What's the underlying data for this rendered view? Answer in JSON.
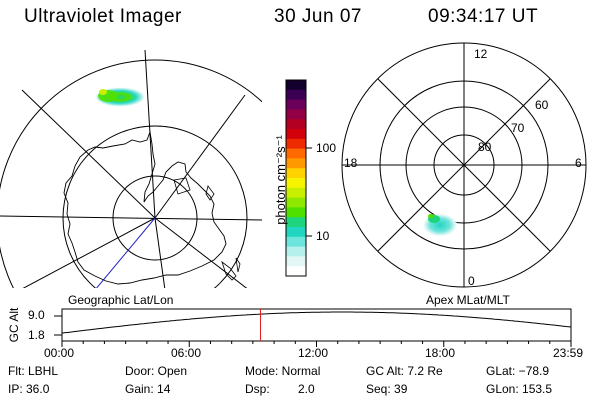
{
  "header": {
    "title": "Ultraviolet Imager",
    "date": "30 Jun 07",
    "time": "09:34:17 UT"
  },
  "geo_panel": {
    "caption": "Geographic Lat/Lon"
  },
  "colorbar": {
    "unit_label": "photon cm⁻²s⁻¹",
    "ticks": [
      "100",
      "10"
    ],
    "colors": [
      "#14002d",
      "#3b0054",
      "#6a005a",
      "#930045",
      "#b30022",
      "#d1000a",
      "#ee2a00",
      "#ff6a00",
      "#ff9900",
      "#ffd200",
      "#f6f400",
      "#c9ef00",
      "#8fe800",
      "#4fe000",
      "#1ed47d",
      "#21d6c0",
      "#6de4dc",
      "#b5f0ec",
      "#e3f8f6",
      "#ffffff"
    ]
  },
  "apex_panel": {
    "caption": "Apex MLat/MLT",
    "mlt_labels": [
      "12",
      "18",
      "6",
      "0"
    ],
    "mlat_labels": [
      "60",
      "70",
      "80"
    ]
  },
  "altitude_plot": {
    "ylabel": "GC Alt",
    "yticks": [
      "9.0",
      "1.8"
    ],
    "xticks": [
      "00:00",
      "06:00",
      "12:00",
      "18:00",
      "23:59"
    ],
    "current_time_fraction": 0.39
  },
  "info": {
    "filter": "Flt: LBHL",
    "ip": "IP: 36.0",
    "door": "Door: Open",
    "gain": "Gain: 14",
    "mode": "Mode: Normal",
    "dsp_label": "Dsp:",
    "dsp_value": "2.0",
    "gc_alt": "GC Alt: 7.2 Re",
    "seq": "Seq: 39",
    "glat": "GLat: −78.9",
    "glon": "GLon: 153.5"
  }
}
